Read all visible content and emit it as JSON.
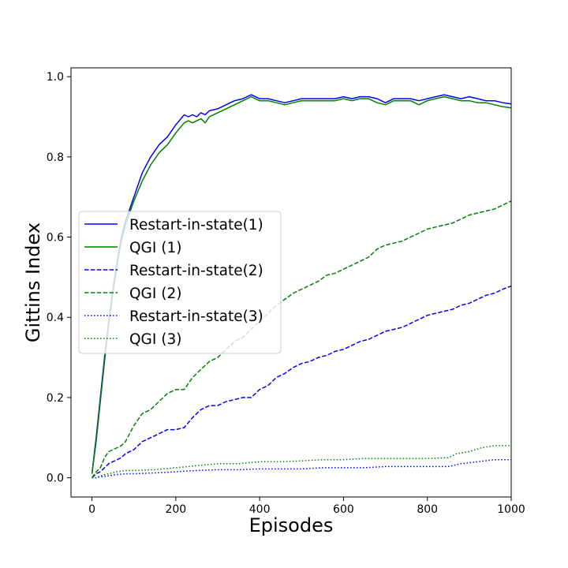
{
  "chart_data": {
    "type": "line",
    "xlabel": "Episodes",
    "ylabel": "Gittins Index",
    "xlim": [
      -50,
      1000
    ],
    "ylim": [
      -0.048,
      1.022
    ],
    "x_ticks": [
      0,
      200,
      400,
      600,
      800,
      1000
    ],
    "y_ticks": [
      0.0,
      0.2,
      0.4,
      0.6,
      0.8,
      1.0
    ],
    "x_tick_labels": [
      "0",
      "200",
      "400",
      "600",
      "800",
      "1000"
    ],
    "y_tick_labels": [
      "0.0",
      "0.2",
      "0.4",
      "0.6",
      "0.8",
      "1.0"
    ],
    "grid": false,
    "legend_placement": "center-left",
    "series": [
      {
        "name": "Restart-in-state(1)",
        "color": "#0000ff",
        "dash": "solid",
        "x": [
          0,
          10,
          20,
          30,
          40,
          50,
          60,
          70,
          80,
          90,
          100,
          120,
          140,
          160,
          180,
          200,
          220,
          230,
          240,
          250,
          260,
          270,
          280,
          300,
          320,
          340,
          360,
          380,
          400,
          420,
          440,
          460,
          480,
          500,
          520,
          540,
          560,
          580,
          600,
          620,
          640,
          660,
          680,
          700,
          720,
          740,
          760,
          780,
          800,
          820,
          840,
          860,
          880,
          900,
          920,
          940,
          960,
          980,
          1000
        ],
        "y": [
          0.01,
          0.1,
          0.2,
          0.3,
          0.39,
          0.47,
          0.54,
          0.6,
          0.64,
          0.67,
          0.7,
          0.76,
          0.8,
          0.83,
          0.85,
          0.88,
          0.905,
          0.9,
          0.905,
          0.9,
          0.91,
          0.905,
          0.915,
          0.92,
          0.93,
          0.94,
          0.945,
          0.955,
          0.945,
          0.945,
          0.94,
          0.935,
          0.94,
          0.945,
          0.945,
          0.945,
          0.945,
          0.945,
          0.95,
          0.945,
          0.95,
          0.95,
          0.945,
          0.935,
          0.945,
          0.945,
          0.945,
          0.94,
          0.945,
          0.95,
          0.955,
          0.95,
          0.945,
          0.95,
          0.945,
          0.94,
          0.94,
          0.935,
          0.932
        ]
      },
      {
        "name": "QGI (1)",
        "color": "#008000",
        "dash": "solid",
        "x": [
          0,
          10,
          20,
          30,
          40,
          50,
          60,
          70,
          80,
          90,
          100,
          120,
          140,
          160,
          180,
          200,
          220,
          230,
          240,
          250,
          260,
          270,
          280,
          300,
          320,
          340,
          360,
          380,
          400,
          420,
          440,
          460,
          480,
          500,
          520,
          540,
          560,
          580,
          600,
          620,
          640,
          660,
          680,
          700,
          720,
          740,
          760,
          780,
          800,
          820,
          840,
          860,
          880,
          900,
          920,
          940,
          960,
          980,
          1000
        ],
        "y": [
          0.01,
          0.09,
          0.19,
          0.29,
          0.38,
          0.46,
          0.53,
          0.59,
          0.63,
          0.66,
          0.69,
          0.74,
          0.78,
          0.81,
          0.83,
          0.86,
          0.885,
          0.89,
          0.885,
          0.89,
          0.895,
          0.885,
          0.9,
          0.91,
          0.92,
          0.93,
          0.94,
          0.95,
          0.94,
          0.94,
          0.935,
          0.93,
          0.935,
          0.94,
          0.94,
          0.94,
          0.94,
          0.94,
          0.945,
          0.94,
          0.945,
          0.945,
          0.935,
          0.93,
          0.94,
          0.94,
          0.94,
          0.93,
          0.94,
          0.945,
          0.95,
          0.945,
          0.94,
          0.94,
          0.935,
          0.935,
          0.93,
          0.925,
          0.922
        ]
      },
      {
        "name": "Restart-in-state(2)",
        "color": "#0000ff",
        "dash": "dashed",
        "x": [
          0,
          10,
          20,
          30,
          40,
          50,
          60,
          70,
          80,
          100,
          120,
          140,
          160,
          180,
          200,
          220,
          240,
          260,
          280,
          300,
          320,
          340,
          360,
          380,
          400,
          420,
          440,
          460,
          480,
          500,
          520,
          540,
          560,
          580,
          600,
          620,
          640,
          660,
          680,
          700,
          720,
          740,
          760,
          780,
          800,
          820,
          840,
          860,
          880,
          900,
          920,
          940,
          960,
          980,
          1000
        ],
        "y": [
          0.0,
          0.01,
          0.015,
          0.025,
          0.035,
          0.04,
          0.045,
          0.05,
          0.06,
          0.07,
          0.09,
          0.1,
          0.11,
          0.12,
          0.12,
          0.125,
          0.15,
          0.17,
          0.18,
          0.18,
          0.19,
          0.195,
          0.2,
          0.2,
          0.22,
          0.23,
          0.25,
          0.26,
          0.275,
          0.285,
          0.29,
          0.3,
          0.305,
          0.315,
          0.32,
          0.33,
          0.34,
          0.345,
          0.355,
          0.365,
          0.37,
          0.375,
          0.385,
          0.395,
          0.405,
          0.41,
          0.415,
          0.42,
          0.43,
          0.435,
          0.445,
          0.455,
          0.46,
          0.47,
          0.478
        ]
      },
      {
        "name": "QGI (2)",
        "color": "#008000",
        "dash": "dashed",
        "x": [
          0,
          10,
          20,
          30,
          40,
          50,
          60,
          70,
          80,
          100,
          120,
          140,
          160,
          180,
          200,
          220,
          240,
          260,
          280,
          300,
          320,
          340,
          360,
          380,
          400,
          420,
          440,
          460,
          480,
          500,
          520,
          540,
          560,
          580,
          600,
          620,
          640,
          660,
          680,
          700,
          720,
          740,
          760,
          780,
          800,
          820,
          840,
          860,
          880,
          900,
          920,
          940,
          960,
          980,
          1000
        ],
        "y": [
          0.0,
          0.015,
          0.025,
          0.05,
          0.065,
          0.07,
          0.075,
          0.08,
          0.09,
          0.13,
          0.16,
          0.17,
          0.19,
          0.21,
          0.22,
          0.22,
          0.25,
          0.27,
          0.29,
          0.3,
          0.32,
          0.34,
          0.35,
          0.37,
          0.39,
          0.41,
          0.43,
          0.445,
          0.46,
          0.47,
          0.48,
          0.49,
          0.505,
          0.51,
          0.52,
          0.53,
          0.54,
          0.55,
          0.57,
          0.58,
          0.585,
          0.59,
          0.6,
          0.61,
          0.62,
          0.625,
          0.63,
          0.635,
          0.645,
          0.655,
          0.66,
          0.665,
          0.67,
          0.68,
          0.69
        ]
      },
      {
        "name": "Restart-in-state(3)",
        "color": "#0000ff",
        "dash": "dotted",
        "x": [
          0,
          10,
          20,
          40,
          60,
          80,
          100,
          150,
          200,
          250,
          300,
          350,
          400,
          450,
          500,
          550,
          600,
          650,
          700,
          750,
          800,
          850,
          880,
          920,
          960,
          1000
        ],
        "y": [
          0.0,
          0.0,
          0.002,
          0.005,
          0.008,
          0.01,
          0.01,
          0.012,
          0.015,
          0.018,
          0.02,
          0.02,
          0.022,
          0.022,
          0.022,
          0.025,
          0.025,
          0.025,
          0.028,
          0.028,
          0.028,
          0.028,
          0.035,
          0.04,
          0.045,
          0.045
        ]
      },
      {
        "name": "QGI (3)",
        "color": "#008000",
        "dash": "dotted",
        "x": [
          0,
          10,
          20,
          40,
          60,
          80,
          100,
          150,
          200,
          250,
          300,
          350,
          400,
          450,
          500,
          550,
          600,
          650,
          700,
          750,
          800,
          850,
          870,
          900,
          930,
          960,
          1000
        ],
        "y": [
          0.0,
          0.0,
          0.005,
          0.01,
          0.015,
          0.018,
          0.018,
          0.02,
          0.025,
          0.03,
          0.035,
          0.035,
          0.04,
          0.04,
          0.042,
          0.045,
          0.045,
          0.048,
          0.048,
          0.048,
          0.048,
          0.05,
          0.06,
          0.065,
          0.075,
          0.08,
          0.08
        ]
      }
    ]
  }
}
